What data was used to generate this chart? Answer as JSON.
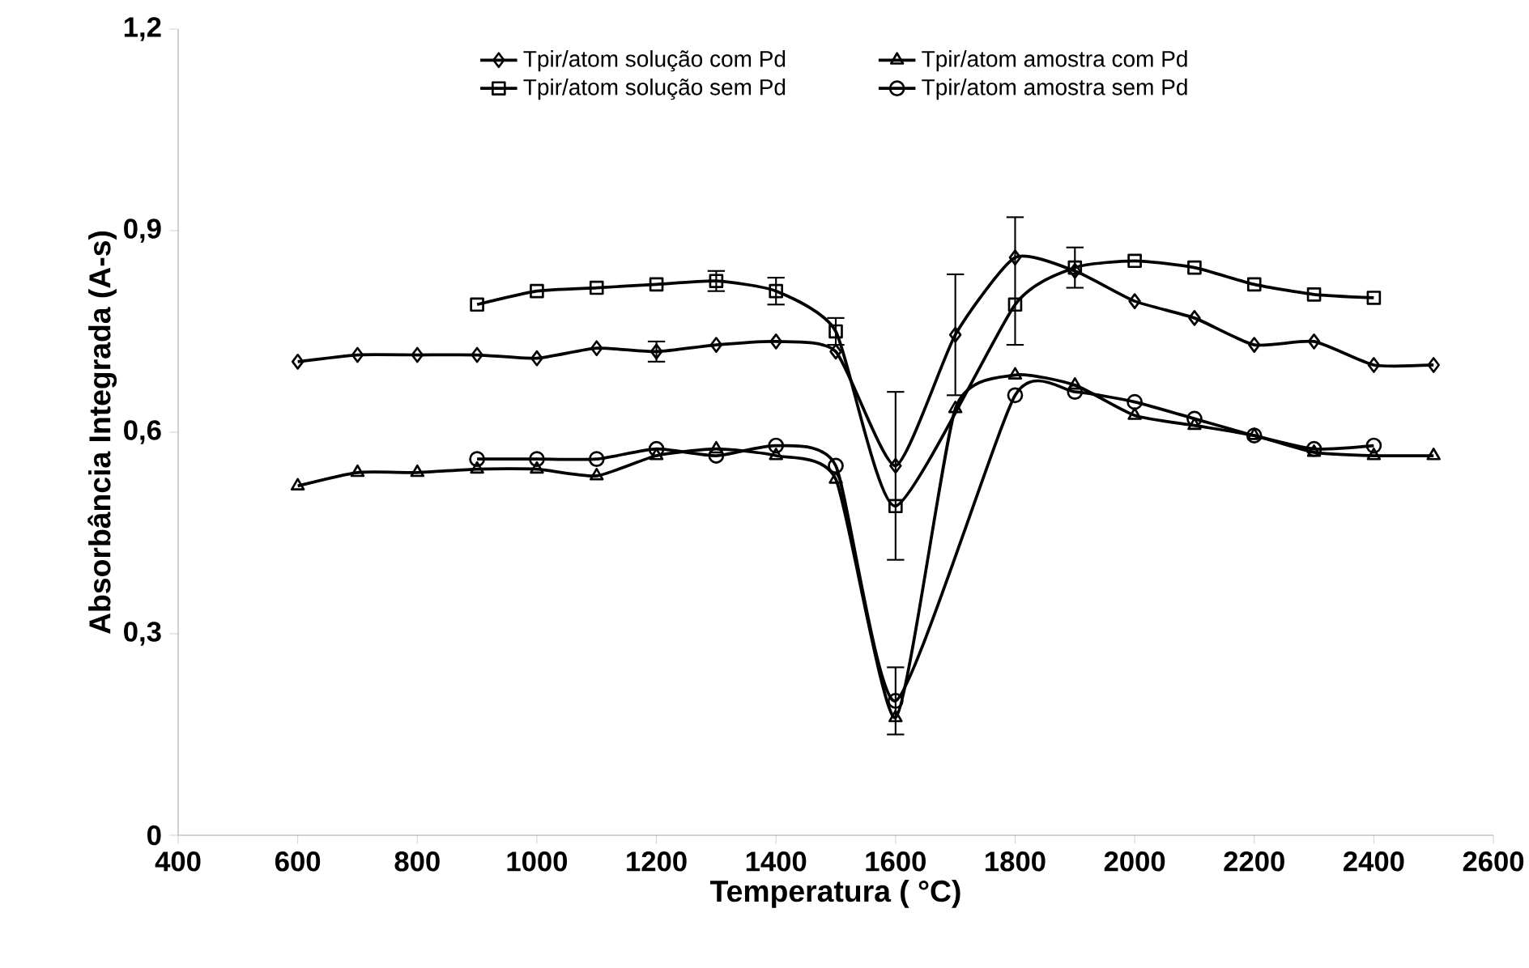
{
  "chart_data": {
    "type": "line",
    "xlabel": "Temperatura ( °C)",
    "ylabel": "Absorbância Integrada (A-s)",
    "x": [
      600,
      700,
      800,
      900,
      1000,
      1100,
      1200,
      1300,
      1400,
      1500,
      1600,
      1700,
      1800,
      1900,
      2000,
      2100,
      2200,
      2300,
      2400,
      2500
    ],
    "series": [
      {
        "name": "Tpir/atom solução com Pd",
        "color": "#000000",
        "marker": "diamond",
        "values": [
          0.705,
          0.715,
          0.715,
          0.715,
          0.71,
          0.725,
          0.72,
          0.73,
          0.735,
          0.72,
          0.55,
          0.745,
          0.86,
          0.84,
          0.795,
          0.77,
          0.73,
          0.735,
          0.7,
          0.7
        ],
        "errors": [
          null,
          null,
          null,
          null,
          null,
          null,
          0.015,
          null,
          null,
          null,
          null,
          0.09,
          null,
          null,
          null,
          null,
          null,
          null,
          null,
          null
        ]
      },
      {
        "name": "Tpir/atom amostra com Pd",
        "color": "#000000",
        "marker": "triangle",
        "values": [
          0.52,
          0.54,
          0.54,
          0.545,
          0.545,
          0.535,
          0.565,
          0.575,
          0.565,
          0.53,
          0.175,
          0.635,
          0.685,
          0.67,
          0.625,
          0.61,
          0.595,
          0.57,
          0.565,
          0.565
        ]
      },
      {
        "name": "Tpir/atom solução sem Pd",
        "color": "#000000",
        "marker": "square",
        "x": [
          900,
          1000,
          1100,
          1200,
          1300,
          1400,
          1500,
          1600,
          1800,
          1900,
          2000,
          2100,
          2200,
          2300,
          2400
        ],
        "values": [
          0.79,
          0.81,
          0.815,
          0.82,
          0.825,
          0.81,
          0.75,
          0.49,
          0.79,
          0.845,
          0.855,
          0.845,
          0.82,
          0.805,
          0.8
        ],
        "errors": [
          null,
          null,
          null,
          null,
          0.015,
          0.02,
          0.02,
          [
            0.41,
            0.66
          ],
          [
            0.73,
            0.92
          ],
          0.03,
          null,
          null,
          null,
          null,
          null
        ]
      },
      {
        "name": "Tpir/atom amostra sem Pd",
        "color": "#000000",
        "marker": "circle",
        "x": [
          900,
          1000,
          1100,
          1200,
          1300,
          1400,
          1500,
          1600,
          1800,
          1900,
          2000,
          2100,
          2200,
          2300,
          2400
        ],
        "values": [
          0.56,
          0.56,
          0.56,
          0.575,
          0.565,
          0.58,
          0.55,
          0.2,
          0.655,
          0.66,
          0.645,
          0.62,
          0.595,
          0.575,
          0.58
        ],
        "errors": [
          null,
          null,
          null,
          null,
          null,
          null,
          null,
          0.05,
          null,
          null,
          null,
          null,
          null,
          null,
          null
        ]
      }
    ],
    "xlim": [
      400,
      2600
    ],
    "xticks": [
      400,
      600,
      800,
      1000,
      1200,
      1400,
      1600,
      1800,
      2000,
      2200,
      2400,
      2600
    ],
    "ylim": [
      0,
      1.2
    ],
    "yticks": [
      0,
      {
        "value": 0.3,
        "label": "0,3"
      },
      {
        "value": 0.6,
        "label": "0,6"
      },
      {
        "value": 0.9,
        "label": "0,9"
      },
      {
        "value": 1.2,
        "label": "1,2"
      }
    ],
    "legend": "top",
    "grid": false,
    "line_style": "solid"
  }
}
